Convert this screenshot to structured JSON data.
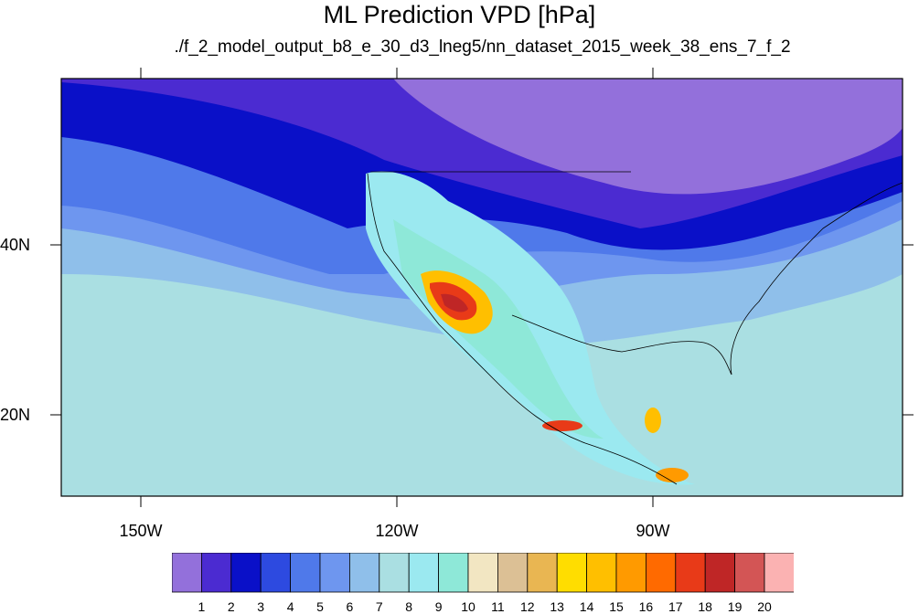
{
  "title": "ML Prediction VPD [hPa]",
  "subtitle": "./f_2_model_output_b8_e_30_d3_lneg5/nn_dataset_2015_week_38_ens_7_f_2",
  "map": {
    "projection": "cylindrical-equidistant",
    "lon_range": [
      -160,
      -60
    ],
    "lat_range": [
      10,
      59
    ],
    "lon_ticks": [
      "150W",
      "120W",
      "90W"
    ],
    "lat_ticks": [
      "40N",
      "20N"
    ],
    "outline_color": "#000000"
  },
  "colorbar": {
    "labels": [
      "1",
      "2",
      "3",
      "4",
      "5",
      "6",
      "7",
      "8",
      "9",
      "10",
      "11",
      "12",
      "13",
      "14",
      "15",
      "16",
      "17",
      "18",
      "19",
      "20"
    ],
    "colors": [
      "#9370db",
      "#4b2bd1",
      "#0a10c8",
      "#2d4ae0",
      "#4f79ea",
      "#6e96ef",
      "#8fbfea",
      "#aadfe2",
      "#9be9f0",
      "#8ee8d8",
      "#f2e6c2",
      "#dcc095",
      "#e9b652",
      "#ffdd00",
      "#ffbf00",
      "#ff9a00",
      "#ff6a00",
      "#e83a18",
      "#bf2626",
      "#d35555",
      "#fbb2b2"
    ]
  }
}
